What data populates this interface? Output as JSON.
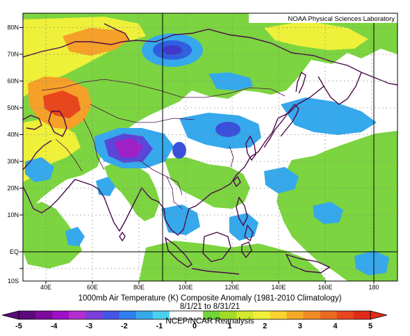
{
  "credit": "NOAA Physical Sciences Laboratory",
  "caption": {
    "line1": "1000mb Air Temperature (K) Composite Anomaly (1981-2010 Climatology)",
    "line2": "8/1/21 to 8/31/21",
    "line3": "NCEP/NCAR Reanalysis"
  },
  "lat_ticks": [
    "80N",
    "70N",
    "60N",
    "50N",
    "40N",
    "30N",
    "20N",
    "10N",
    "EQ",
    "10S"
  ],
  "lon_ticks": [
    "40E",
    "60E",
    "80E",
    "100E",
    "120E",
    "140E",
    "160E",
    "180"
  ],
  "colorbar": {
    "labels": [
      "-5",
      "-4",
      "-3",
      "-2",
      "-1",
      "0",
      "1",
      "2",
      "3",
      "4",
      "5"
    ],
    "colors": [
      "#5b0a7a",
      "#7d0a9b",
      "#a00fc8",
      "#b52ed2",
      "#7a3fd8",
      "#4455e6",
      "#2f7ff0",
      "#36a8ec",
      "#4cd0f0",
      "#ffffff",
      "#ffffff",
      "#72d43a",
      "#a0dc28",
      "#d4ea2e",
      "#f0f03a",
      "#fcd232",
      "#f5aa28",
      "#f08a24",
      "#ec6a20",
      "#e8461c",
      "#e22a18"
    ]
  }
}
